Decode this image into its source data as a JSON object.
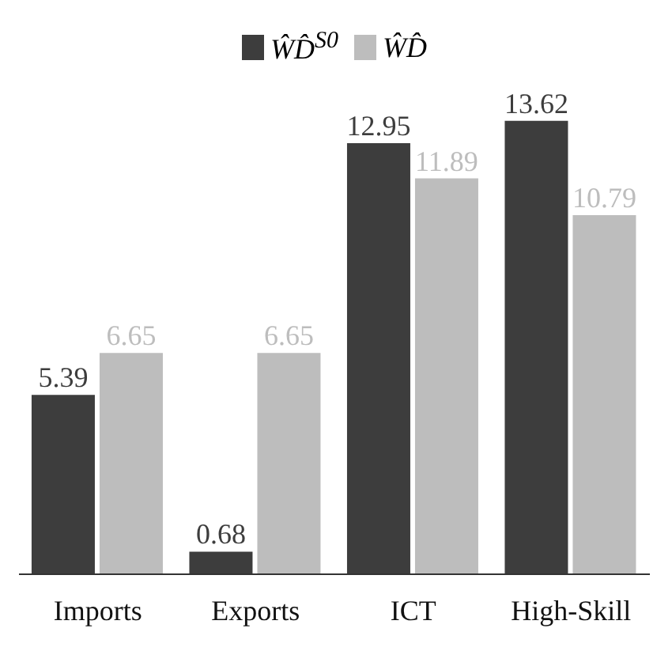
{
  "chart_data": {
    "type": "bar",
    "categories": [
      "Imports",
      "Exports",
      "ICT",
      "High-Skill"
    ],
    "series": [
      {
        "name": "ŴD̂$^{S0}$",
        "color": "#3d3d3d",
        "values": [
          5.39,
          0.68,
          12.95,
          13.62
        ]
      },
      {
        "name": "ŴD̂",
        "color": "#bdbdbd",
        "values": [
          6.65,
          6.65,
          11.89,
          10.79
        ]
      }
    ],
    "tick_labels": "x",
    "data_labels": true,
    "legend": "top",
    "grid": false
  }
}
